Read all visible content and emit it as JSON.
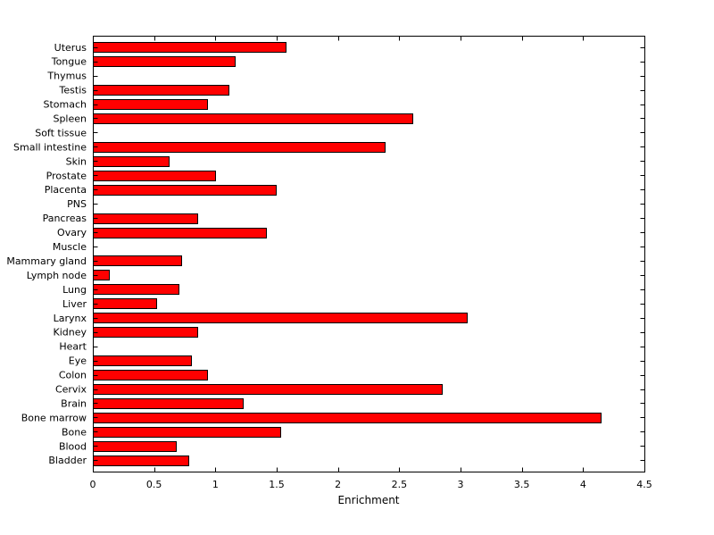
{
  "chart_data": {
    "type": "bar",
    "orientation": "horizontal",
    "title": "",
    "xlabel": "Enrichment",
    "ylabel": "",
    "xlim": [
      0,
      4.5
    ],
    "xticks": [
      0,
      0.5,
      1,
      1.5,
      2,
      2.5,
      3,
      3.5,
      4,
      4.5
    ],
    "xtick_labels": [
      "0",
      "0.5",
      "1",
      "1.5",
      "2",
      "2.5",
      "3",
      "3.5",
      "4",
      "4.5"
    ],
    "grid": "off",
    "legend": "none",
    "bar_color": "#ff0000",
    "bar_edge_color": "#000000",
    "categories_top_to_bottom": [
      "Uterus",
      "Tongue",
      "Thymus",
      "Testis",
      "Stomach",
      "Spleen",
      "Soft tissue",
      "Small intestine",
      "Skin",
      "Prostate",
      "Placenta",
      "PNS",
      "Pancreas",
      "Ovary",
      "Muscle",
      "Mammary gland",
      "Lymph node",
      "Lung",
      "Liver",
      "Larynx",
      "Kidney",
      "Heart",
      "Eye",
      "Colon",
      "Cervix",
      "Brain",
      "Bone marrow",
      "Bone",
      "Blood",
      "Bladder"
    ],
    "values": [
      1.57,
      1.16,
      0,
      1.11,
      0.93,
      2.61,
      0,
      2.38,
      0.62,
      1.0,
      1.49,
      0,
      0.85,
      1.41,
      0,
      0.72,
      0.13,
      0.7,
      0.52,
      3.05,
      0.85,
      0,
      0.8,
      0.93,
      2.85,
      1.22,
      4.14,
      1.53,
      0.68,
      0.78
    ]
  }
}
